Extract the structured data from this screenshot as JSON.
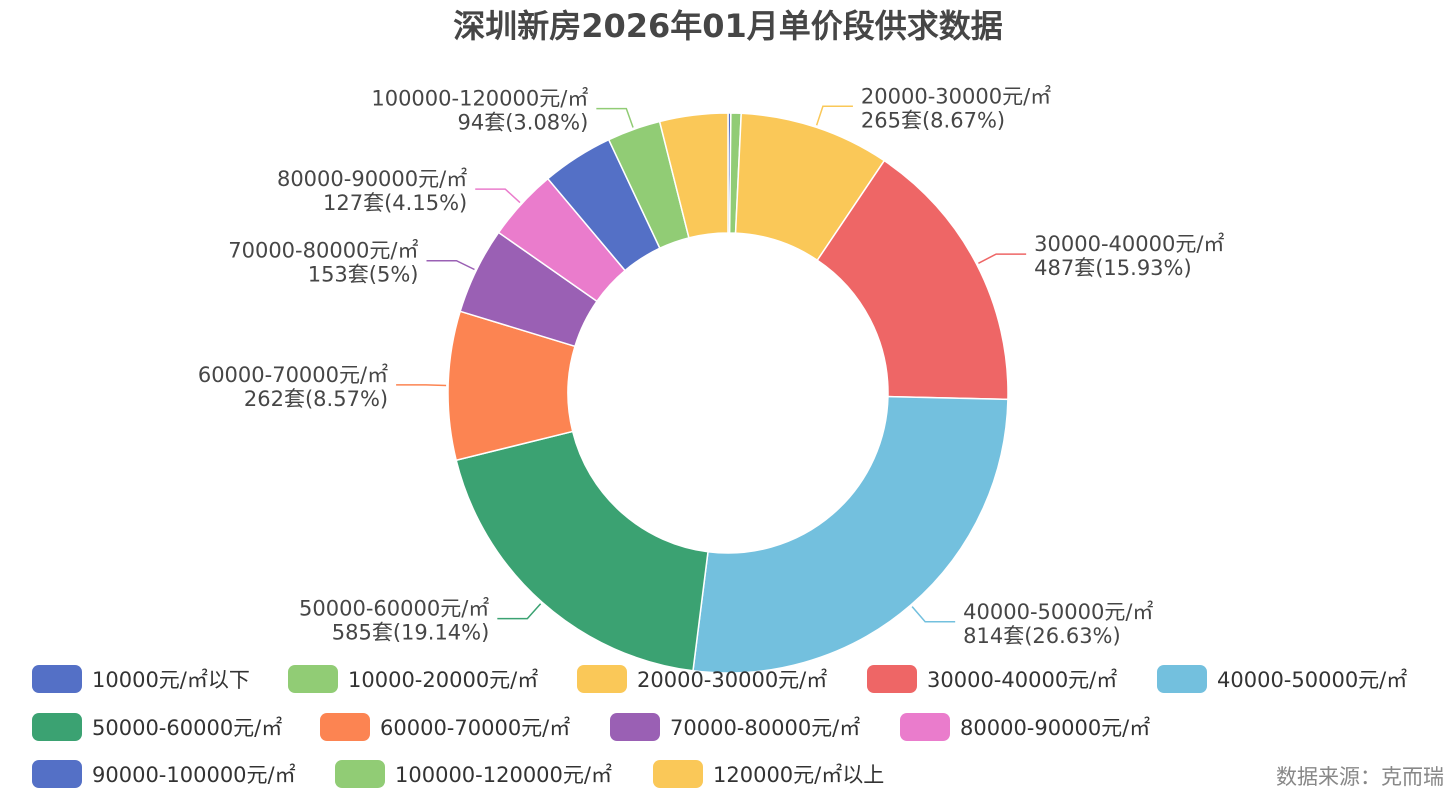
{
  "chart_data": {
    "type": "pie",
    "variant": "donut",
    "title": "深圳新房2026年01月单价段供求数据",
    "source": "数据来源：克而瑞",
    "legend_position": "bottom",
    "series": [
      {
        "name": "10000元/㎡以下",
        "value": 5,
        "label": "",
        "pct_label": "",
        "color": "#5470c6"
      },
      {
        "name": "10000-20000元/㎡",
        "value": 18,
        "label": "",
        "pct_label": "",
        "color": "#91cc75"
      },
      {
        "name": "20000-30000元/㎡",
        "value": 265,
        "label": "20000-30000元/㎡",
        "pct_label": "265套(8.67%)",
        "color": "#fac858"
      },
      {
        "name": "30000-40000元/㎡",
        "value": 487,
        "label": "30000-40000元/㎡",
        "pct_label": "487套(15.93%)",
        "color": "#ee6666"
      },
      {
        "name": "40000-50000元/㎡",
        "value": 814,
        "label": "40000-50000元/㎡",
        "pct_label": "814套(26.63%)",
        "color": "#73c0de"
      },
      {
        "name": "50000-60000元/㎡",
        "value": 585,
        "label": "50000-60000元/㎡",
        "pct_label": "585套(19.14%)",
        "color": "#3ba272"
      },
      {
        "name": "60000-70000元/㎡",
        "value": 262,
        "label": "60000-70000元/㎡",
        "pct_label": "262套(8.57%)",
        "color": "#fc8452"
      },
      {
        "name": "70000-80000元/㎡",
        "value": 153,
        "label": "70000-80000元/㎡",
        "pct_label": "153套(5%)",
        "color": "#9a60b4"
      },
      {
        "name": "80000-90000元/㎡",
        "value": 127,
        "label": "80000-90000元/㎡",
        "pct_label": "127套(4.15%)",
        "color": "#ea7ccc"
      },
      {
        "name": "90000-100000元/㎡",
        "value": 126,
        "label": "",
        "pct_label": "",
        "color": "#5470c6"
      },
      {
        "name": "100000-120000元/㎡",
        "value": 94,
        "label": "100000-120000元/㎡",
        "pct_label": "94套(3.08%)",
        "color": "#91cc75"
      },
      {
        "name": "120000元/㎡以上",
        "value": 120,
        "label": "",
        "pct_label": "",
        "color": "#fac858"
      }
    ]
  }
}
